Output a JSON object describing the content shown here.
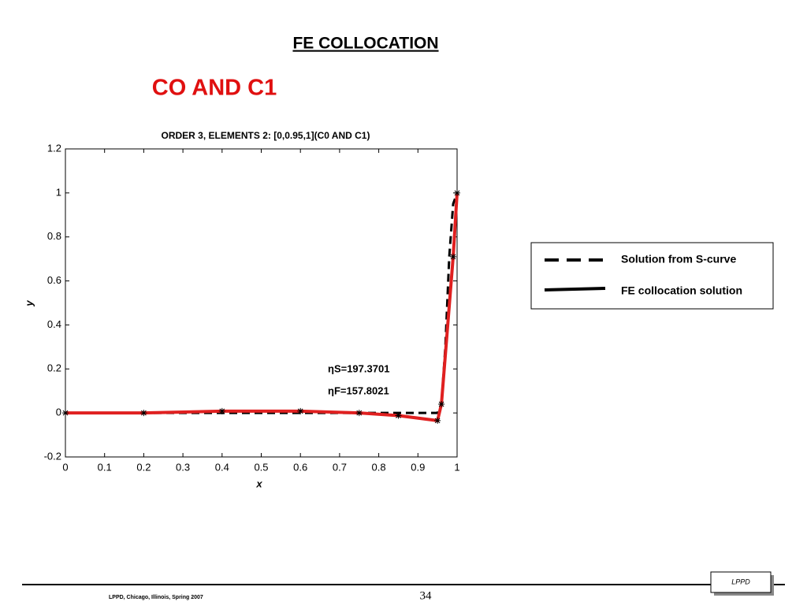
{
  "slide": {
    "heading": "FE COLLOCATION",
    "subheading": "CO AND C1",
    "footer": "LPPD, Chicago, Illinois, Spring 2007",
    "page_number": "34",
    "logo": "LPPD"
  },
  "chart_data": {
    "type": "line",
    "title": "ORDER 3, ELEMENTS 2: [0,0.95,1](C0 AND C1)",
    "x_label": "x",
    "y_label": "y",
    "annotations": [
      "ηS=197.3701",
      "ηF=157.8021"
    ],
    "xlim": [
      0,
      1
    ],
    "ylim": [
      -0.2,
      1.2
    ],
    "xticks": [
      0,
      0.1,
      0.2,
      0.3,
      0.4,
      0.5,
      0.6,
      0.7,
      0.8,
      0.9,
      1
    ],
    "yticks": [
      -0.2,
      0,
      0.2,
      0.4,
      0.6,
      0.8,
      1,
      1.2
    ],
    "series": [
      {
        "name": "Solution from S-curve",
        "color": "#000000",
        "dash": true,
        "x": [
          0,
          0.2,
          0.75,
          0.95,
          0.96,
          0.97,
          0.98,
          0.99,
          1
        ],
        "values": [
          0,
          0,
          0,
          0,
          0.04,
          0.3,
          0.71,
          0.95,
          1
        ]
      },
      {
        "name": "FE collocation solution",
        "color": "#e02020",
        "dash": false,
        "marker": "asterisk",
        "x": [
          0,
          0.2,
          0.4,
          0.6,
          0.75,
          0.85,
          0.95,
          0.96,
          0.99,
          1
        ],
        "values": [
          0,
          0,
          0.008,
          0.008,
          0,
          -0.012,
          -0.035,
          0.04,
          0.71,
          1
        ]
      }
    ]
  }
}
